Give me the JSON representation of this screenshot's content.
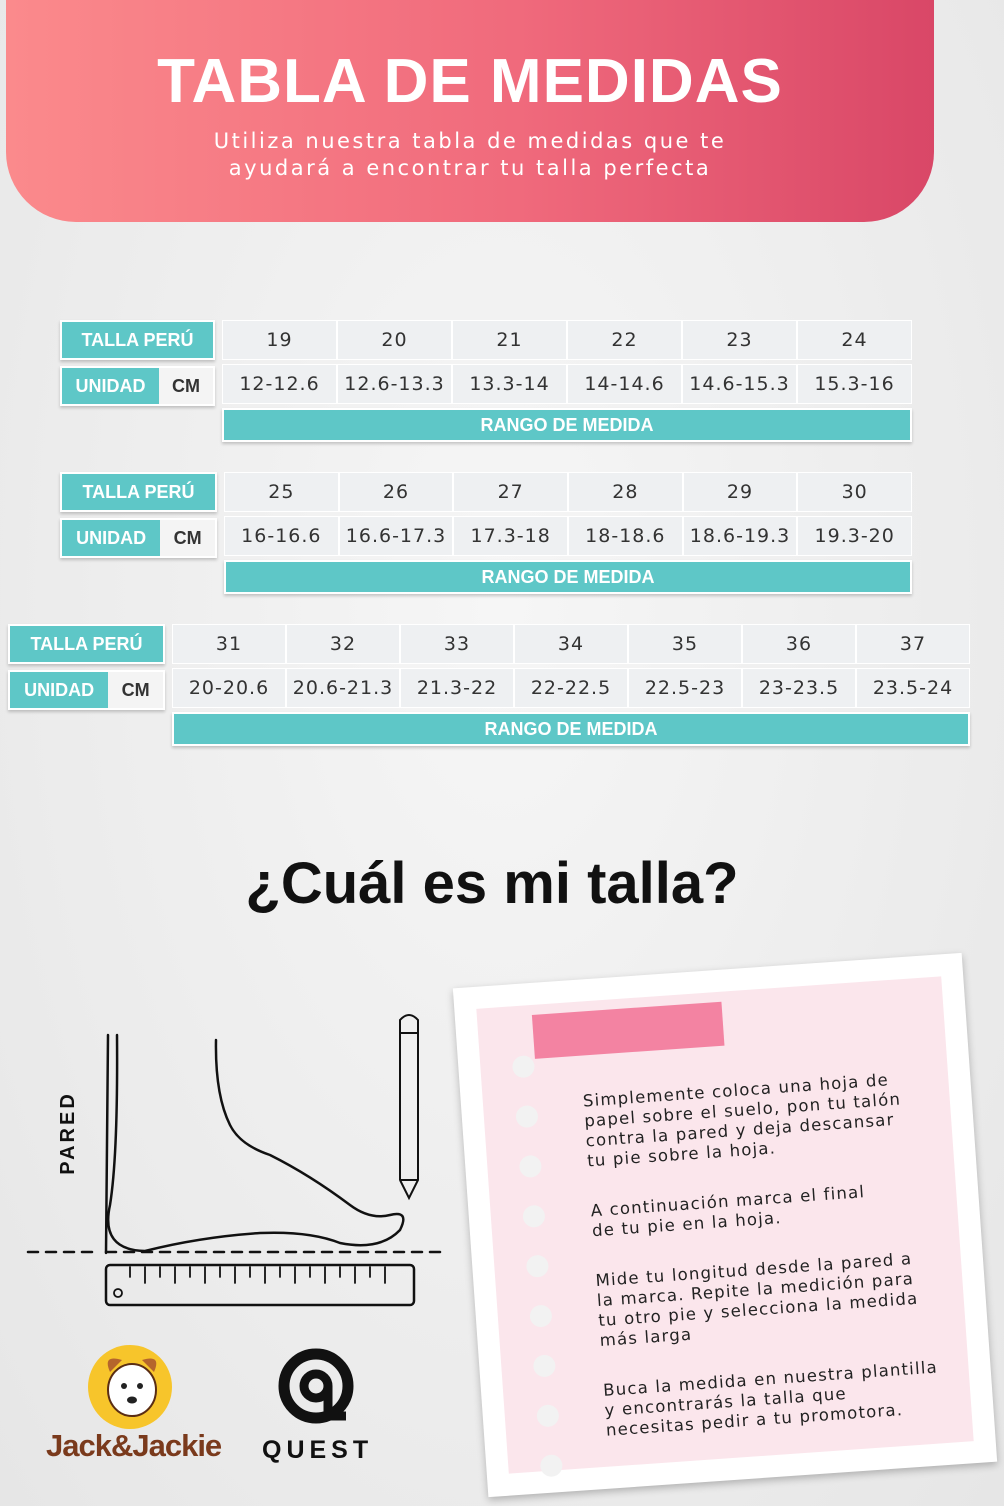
{
  "header": {
    "title": "TABLA DE MEDIDAS",
    "subtitle": [
      "Utiliza nuestra tabla de medidas que te",
      "ayudará a encontrar tu talla perfecta"
    ]
  },
  "tables": [
    {
      "size_label": "TALLA PERÚ",
      "unit_label": "UNIDAD",
      "unit": "CM",
      "sizes": [
        19,
        20,
        21,
        22,
        23,
        24
      ],
      "ranges": [
        "12-12.6",
        "12.6-13.3",
        "13.3-14",
        "14-14.6",
        "14.6-15.3",
        "15.3-16"
      ],
      "footer": "RANGO DE MEDIDA"
    },
    {
      "size_label": "TALLA PERÚ",
      "unit_label": "UNIDAD",
      "unit": "CM",
      "sizes": [
        25,
        26,
        27,
        28,
        29,
        30
      ],
      "ranges": [
        "16-16.6",
        "16.6-17.3",
        "17.3-18",
        "18-18.6",
        "18.6-19.3",
        "19.3-20"
      ],
      "footer": "RANGO DE MEDIDA"
    },
    {
      "size_label": "TALLA PERÚ",
      "unit_label": "UNIDAD",
      "unit": "CM",
      "sizes": [
        31,
        32,
        33,
        34,
        35,
        36,
        37
      ],
      "ranges": [
        "20-20.6",
        "20.6-21.3",
        "21.3-22",
        "22-22.5",
        "22.5-23",
        "23-23.5",
        "23.5-24"
      ],
      "footer": "RANGO DE MEDIDA"
    }
  ],
  "question": "¿Cuál es mi talla?",
  "diagram": {
    "wall_label": "PARED"
  },
  "note": {
    "paragraphs": [
      [
        "Simplemente coloca una hoja de",
        "papel sobre el suelo, pon tu talón",
        "contra la pared y deja descansar",
        "tu pie sobre la hoja."
      ],
      [
        "A continuación marca el final",
        "de tu pie en la hoja."
      ],
      [
        "Mide tu longitud desde la pared a",
        "la marca. Repite la medición para",
        "tu otro pie y selecciona la medida",
        "más larga"
      ],
      [
        "Buca la medida en nuestra plantilla",
        "y encontrarás la talla que",
        "necesitas pedir a tu promotora."
      ]
    ]
  },
  "logos": {
    "brand1": "Jack&Jackie",
    "brand2": "QUEST"
  }
}
